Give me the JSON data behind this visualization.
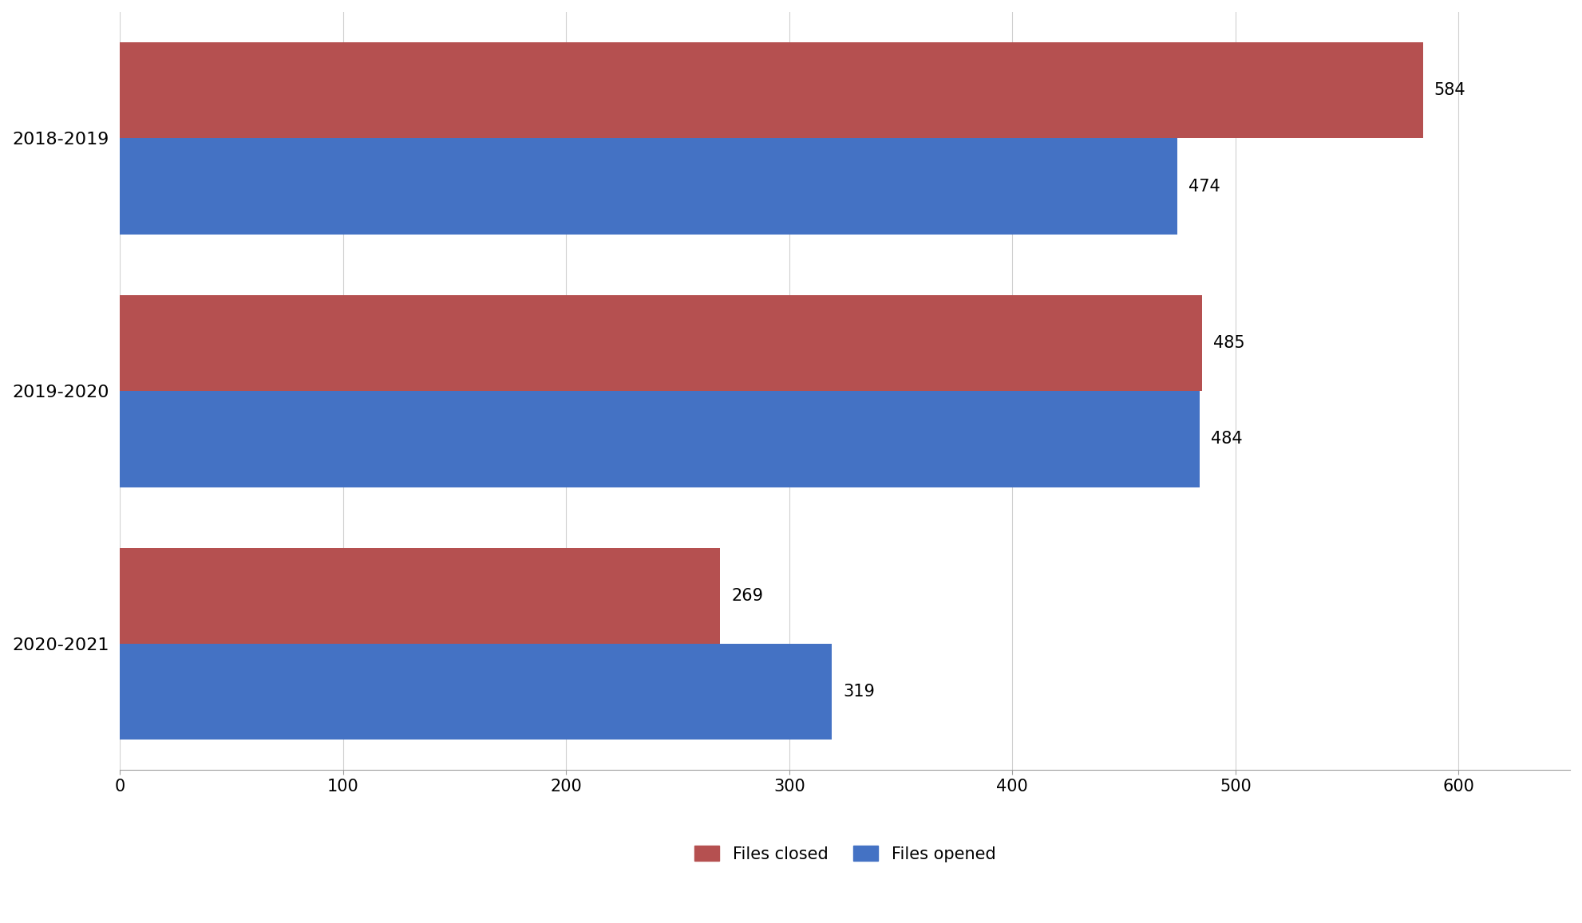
{
  "categories": [
    "2018-2019",
    "2019-2020",
    "2020-2021"
  ],
  "files_closed": [
    584,
    485,
    269
  ],
  "files_opened": [
    474,
    484,
    319
  ],
  "color_closed": "#B55050",
  "color_opened": "#4472C4",
  "xlim": [
    0,
    650
  ],
  "xticks": [
    0,
    100,
    200,
    300,
    400,
    500,
    600
  ],
  "legend_labels": [
    "Files closed",
    "Files opened"
  ],
  "background_color": "#FFFFFF",
  "bar_height": 0.38,
  "label_fontsize": 15,
  "tick_fontsize": 15,
  "ytick_fontsize": 16,
  "annotation_fontsize": 15
}
